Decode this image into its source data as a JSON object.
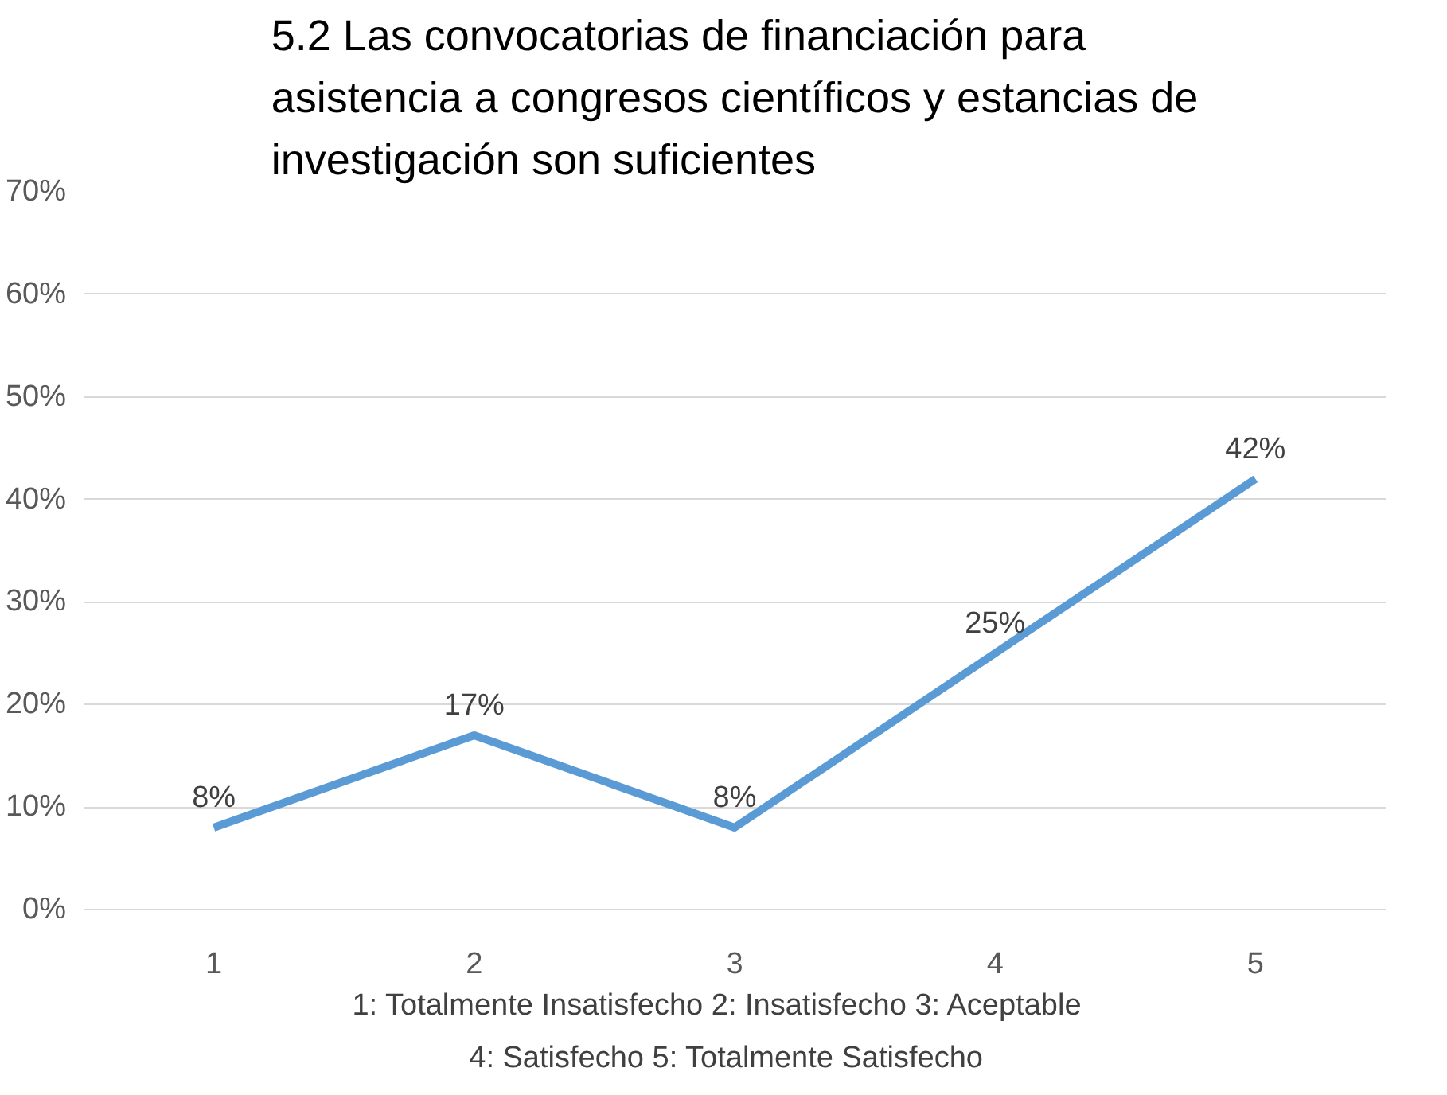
{
  "chart_data": {
    "type": "line",
    "title": "5.2 Las convocatorias de financiación para asistencia a congresos científicos y estancias de investigación son suficientes",
    "categories": [
      "1",
      "2",
      "3",
      "4",
      "5"
    ],
    "series": [
      {
        "color": "#5b9bd5",
        "values": [
          8,
          17,
          8,
          25,
          42
        ],
        "value_labels": [
          "8%",
          "17%",
          "8%",
          "25%",
          "42%"
        ]
      }
    ],
    "ylim": [
      0,
      70
    ],
    "yticks": [
      {
        "value": 0,
        "label": "0%"
      },
      {
        "value": 10,
        "label": "10%"
      },
      {
        "value": 20,
        "label": "20%"
      },
      {
        "value": 30,
        "label": "30%"
      },
      {
        "value": 40,
        "label": "40%"
      },
      {
        "value": 50,
        "label": "50%"
      },
      {
        "value": 60,
        "label": "60%"
      },
      {
        "value": 70,
        "label": "70%"
      }
    ],
    "grid": "y",
    "line_style": "solid",
    "annotations": [
      "1: Totalmente Insatisfecho   2: Insatisfecho   3: Aceptable",
      "4: Satisfecho   5: Totalmente Satisfecho"
    ]
  }
}
